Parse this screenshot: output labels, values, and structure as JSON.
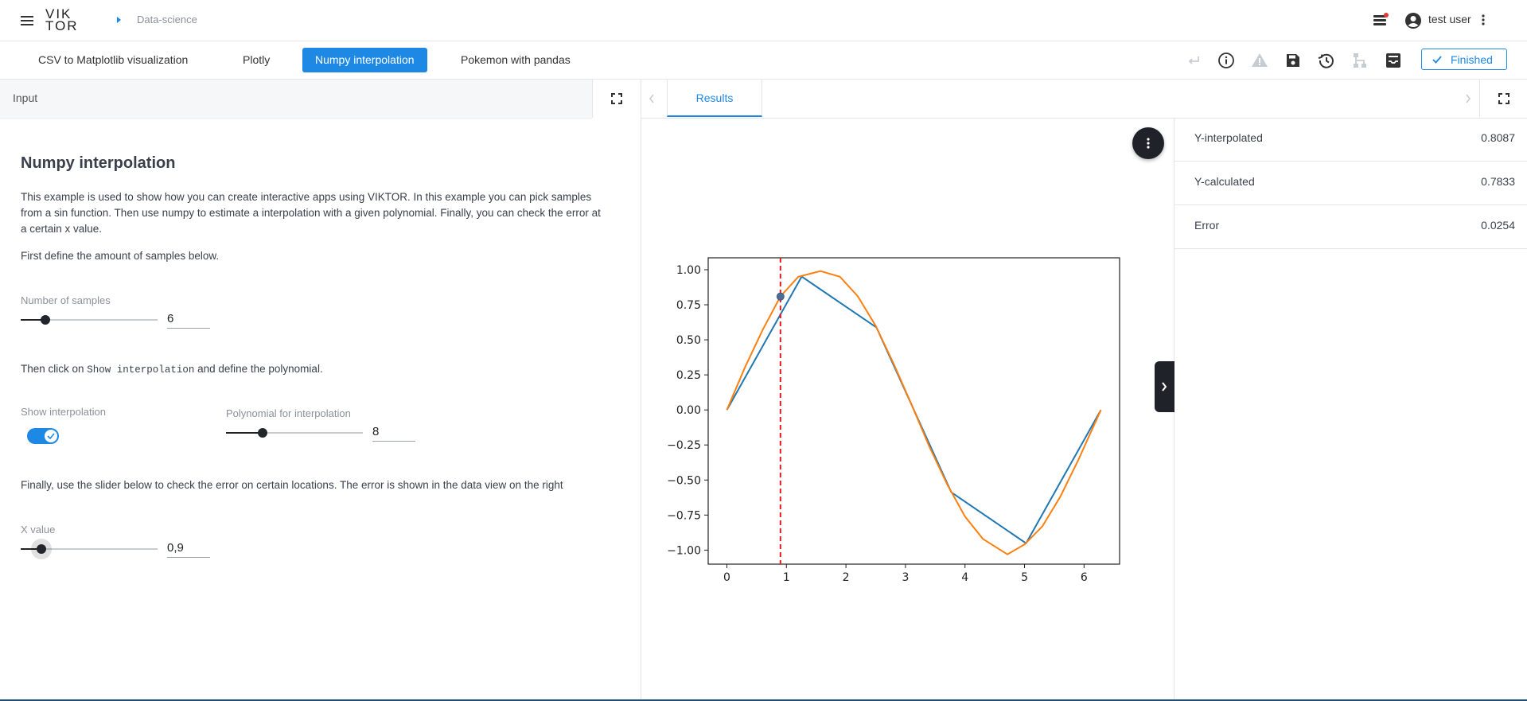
{
  "header": {
    "logo_top": "VIK",
    "logo_bottom": "TOR",
    "breadcrumb": "Data-science",
    "user_name": "test user"
  },
  "tabs": [
    {
      "label": "CSV to Matplotlib visualization"
    },
    {
      "label": "Plotly"
    },
    {
      "label": "Numpy interpolation",
      "active": true
    },
    {
      "label": "Pokemon with pandas"
    }
  ],
  "toolbar": {
    "icons": [
      "enter-icon",
      "info-icon",
      "warning-icon",
      "save-icon",
      "history-icon",
      "tree-icon",
      "inbox-icon"
    ],
    "finished_label": "Finished"
  },
  "input_panel": {
    "header_label": "Input",
    "title": "Numpy interpolation",
    "intro": "This example is used to show how you can create interactive apps using VIKTOR. In this example you can pick samples from a sin function. Then use numpy to estimate a interpolation with a given polynomial. Finally, you can check the error at a certain x value.",
    "samples_intro": "First define the amount of samples below.",
    "samples_label": "Number of samples",
    "samples_value": "6",
    "samples_fraction": 0.18,
    "interp_intro_prefix": "Then click on ",
    "interp_intro_code": "Show interpolation",
    "interp_intro_suffix": " and define the polynomial.",
    "show_interp_label": "Show interpolation",
    "show_interp_on": true,
    "poly_label": "Polynomial for interpolation",
    "poly_value": "8",
    "poly_fraction": 0.27,
    "x_intro": "Finally, use the slider below to check the error on certain locations. The error is shown in the data view on the right",
    "x_label": "X value",
    "x_value": "0,9",
    "x_fraction": 0.15
  },
  "results_panel": {
    "tab_label": "Results",
    "data": [
      {
        "label": "Y-interpolated",
        "value": "0.8087"
      },
      {
        "label": "Y-calculated",
        "value": "0.7833"
      },
      {
        "label": "Error",
        "value": "0.0254"
      }
    ]
  },
  "colors": {
    "accent": "#1e88e5",
    "sample_line": "#1f77b4",
    "interp_line": "#ff7f0e",
    "marker_line": "#e41a1c"
  },
  "chart_data": {
    "type": "line",
    "title": "",
    "xlabel": "",
    "ylabel": "",
    "xlim": [
      -0.314,
      6.597
    ],
    "ylim": [
      -1.1,
      1.085
    ],
    "xticks": [
      0,
      1,
      2,
      3,
      4,
      5,
      6
    ],
    "yticks": [
      1.0,
      0.75,
      0.5,
      0.25,
      0.0,
      -0.25,
      -0.5,
      -0.75,
      -1.0
    ],
    "ytick_labels": [
      "1.00",
      "0.75",
      "0.50",
      "0.25",
      "0.00",
      "−0.25",
      "−0.50",
      "−0.75",
      "−1.00"
    ],
    "grid": false,
    "series": [
      {
        "color": "#1f77b4",
        "x": [
          0,
          1.2566,
          2.5133,
          3.7699,
          5.0265,
          6.2832
        ],
        "y": [
          0,
          0.9511,
          0.5878,
          -0.5878,
          -0.9511,
          0
        ]
      },
      {
        "color": "#ff7f0e",
        "x": [
          0,
          0.3,
          0.6,
          0.9,
          1.2,
          1.5708,
          1.9,
          2.2,
          2.5,
          2.8,
          3.1,
          3.4,
          3.7,
          4.0,
          4.3,
          4.7124,
          5.0,
          5.3,
          5.6,
          5.9,
          6.2832
        ],
        "y": [
          0,
          0.3,
          0.57,
          0.81,
          0.95,
          0.99,
          0.95,
          0.81,
          0.6,
          0.33,
          0.04,
          -0.26,
          -0.53,
          -0.76,
          -0.92,
          -1.03,
          -0.96,
          -0.83,
          -0.62,
          -0.36,
          0
        ]
      }
    ],
    "marker": {
      "x": 0.9,
      "y": 0.8087
    },
    "vline": {
      "x": 0.9,
      "color": "#e41a1c",
      "style": "dashed"
    }
  }
}
